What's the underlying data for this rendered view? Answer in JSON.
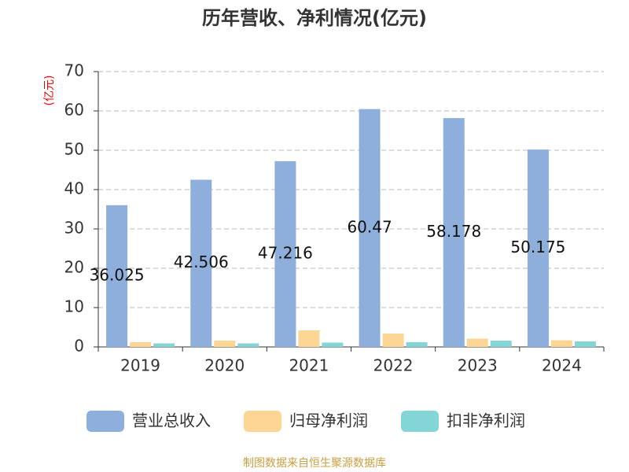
{
  "chart_data": {
    "type": "bar",
    "title": "历年营收、净利情况(亿元)",
    "y_label": "(亿元)",
    "categories": [
      "2019",
      "2020",
      "2021",
      "2022",
      "2023",
      "2024"
    ],
    "series": [
      {
        "name": "营业总收入",
        "color": "#8eaedb",
        "values": [
          36.025,
          42.506,
          47.216,
          60.47,
          58.178,
          50.175
        ]
      },
      {
        "name": "归母净利润",
        "color": "#fdd695",
        "values": [
          1.2,
          1.6,
          4.2,
          3.4,
          2.1,
          1.7
        ]
      },
      {
        "name": "扣非净利润",
        "color": "#84d5d6",
        "values": [
          0.9,
          0.9,
          1.1,
          1.2,
          1.6,
          1.4
        ]
      }
    ],
    "ylim": [
      0,
      70
    ],
    "yticks": [
      0,
      10,
      20,
      30,
      40,
      50,
      60,
      70
    ],
    "grid": true,
    "source": "制图数据来自恒生聚源数据库"
  }
}
